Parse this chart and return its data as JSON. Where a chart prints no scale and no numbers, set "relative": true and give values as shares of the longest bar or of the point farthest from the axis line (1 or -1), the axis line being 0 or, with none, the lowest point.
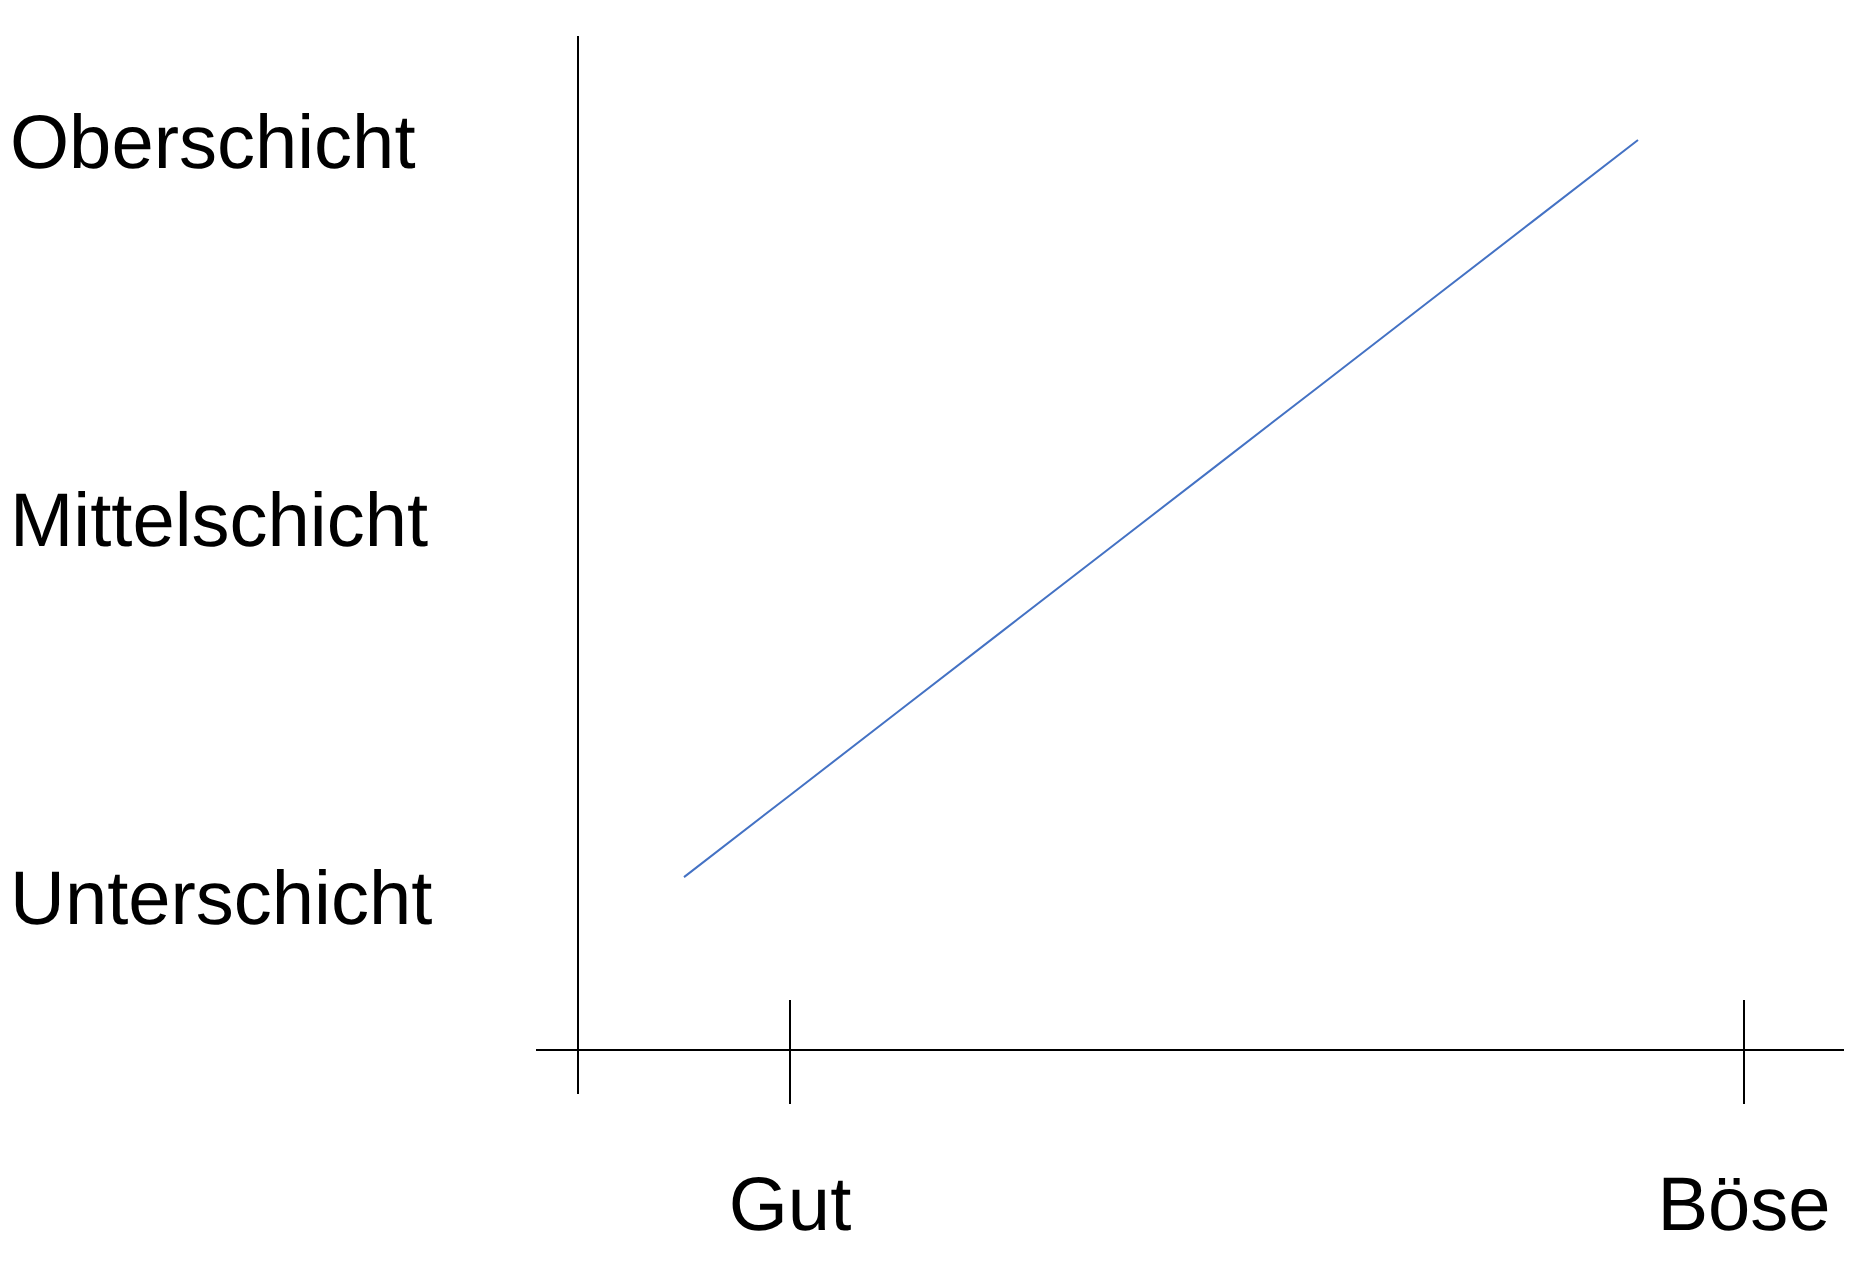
{
  "chart_data": {
    "type": "line",
    "relative": true,
    "categories": [
      null,
      "Gut",
      null,
      null,
      null,
      null,
      null,
      null,
      null,
      null,
      "Böse"
    ],
    "series": [
      {
        "color": "#4472c4",
        "values": [
          0.19,
          0.28,
          0.37,
          0.46,
          0.55,
          0.64,
          0.73,
          0.82,
          0.91,
          1.0,
          null
        ]
      }
    ],
    "annotations": [
      "Oberschicht",
      "Mittelschicht",
      "Unterschicht"
    ],
    "line_style": "solid"
  }
}
